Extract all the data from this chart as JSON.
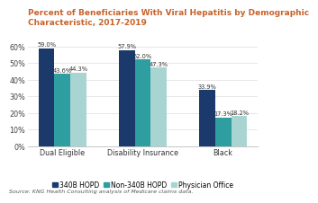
{
  "title": "Percent of Beneficiaries With Viral Hepatitis by Demographic\nCharacteristic, 2017-2019",
  "title_color": "#C8622A",
  "categories": [
    "Dual Eligible",
    "Disability Insurance",
    "Black"
  ],
  "series": {
    "340B HOPD": [
      59.0,
      57.9,
      33.9
    ],
    "Non-340B HOPD": [
      43.6,
      52.0,
      17.3
    ],
    "Physician Office": [
      44.3,
      47.3,
      18.2
    ]
  },
  "bar_colors": {
    "340B HOPD": "#1B3A6B",
    "Non-340B HOPD": "#2E9EA0",
    "Physician Office": "#A8D5D1"
  },
  "ylim": [
    0,
    70
  ],
  "yticks": [
    0,
    10,
    20,
    30,
    40,
    50,
    60
  ],
  "ytick_labels": [
    "0%",
    "10%",
    "20%",
    "30%",
    "40%",
    "50%",
    "60%"
  ],
  "source_text": "Source: KNG Health Consulting analysis of Medicare claims data.",
  "background_color": "#FFFFFF",
  "legend_labels": [
    "340B HOPD",
    "Non-340B HOPD",
    "Physician Office"
  ],
  "bar_width": 0.2,
  "label_fontsize": 4.8,
  "axis_fontsize": 5.8,
  "title_fontsize": 6.5,
  "source_fontsize": 4.5,
  "legend_fontsize": 5.5
}
